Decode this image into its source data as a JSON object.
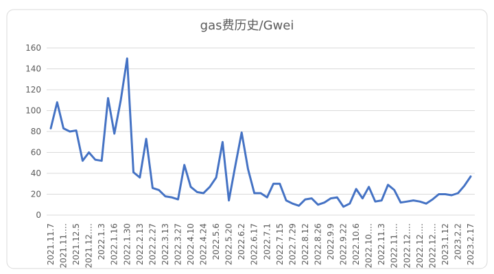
{
  "chart_data": {
    "type": "line",
    "title": "gas费历史/Gwei",
    "categories": [
      "2021.11.7",
      null,
      "2021.11.…",
      null,
      "2021.12.5",
      null,
      "2021.12.…",
      null,
      "2022.1.3",
      null,
      "2022.1.16",
      null,
      "2022.1.30",
      null,
      "2022.2.13",
      null,
      "2022.2.27",
      null,
      "2022.3.13",
      null,
      "2022.3.27",
      null,
      "2022.4.10",
      null,
      "2022.4.24",
      null,
      "2022.5.6",
      null,
      "2022.5.20",
      null,
      "2022.6.2",
      null,
      "2022.6.17",
      null,
      "2022.7.1",
      null,
      "2022.7.15",
      null,
      "2022.7.29",
      null,
      "2022.8.12",
      null,
      "2022.8.26",
      null,
      "2022.9.9",
      null,
      "2022.9.22",
      null,
      "2022.10.6",
      null,
      "2022.10.…",
      null,
      "2022.11.3",
      null,
      "2022.11.…",
      null,
      "2022.12.…",
      null,
      "2022.12.…",
      null,
      "2022.12.…",
      null,
      "2023.1.12",
      null,
      "2023.2.2",
      null,
      "2023.2.17"
    ],
    "series": [
      {
        "name": "gas",
        "color": "#4472c4",
        "values": [
          83,
          108,
          83,
          80,
          81,
          52,
          60,
          53,
          52,
          112,
          78,
          110,
          150,
          41,
          36,
          73,
          26,
          24,
          18,
          17,
          15,
          48,
          27,
          22,
          21,
          27,
          36,
          70,
          14,
          47,
          79,
          44,
          21,
          21,
          17,
          30,
          30,
          14,
          11,
          9,
          15,
          16,
          10,
          12,
          16,
          17,
          8,
          11,
          25,
          16,
          27,
          13,
          14,
          29,
          24,
          12,
          13,
          14,
          13,
          11,
          15,
          20,
          20,
          19,
          21,
          28,
          37
        ]
      }
    ],
    "ylim": [
      0,
      160
    ],
    "yticks": [
      0,
      20,
      40,
      60,
      80,
      100,
      120,
      140,
      160
    ],
    "grid": true
  }
}
